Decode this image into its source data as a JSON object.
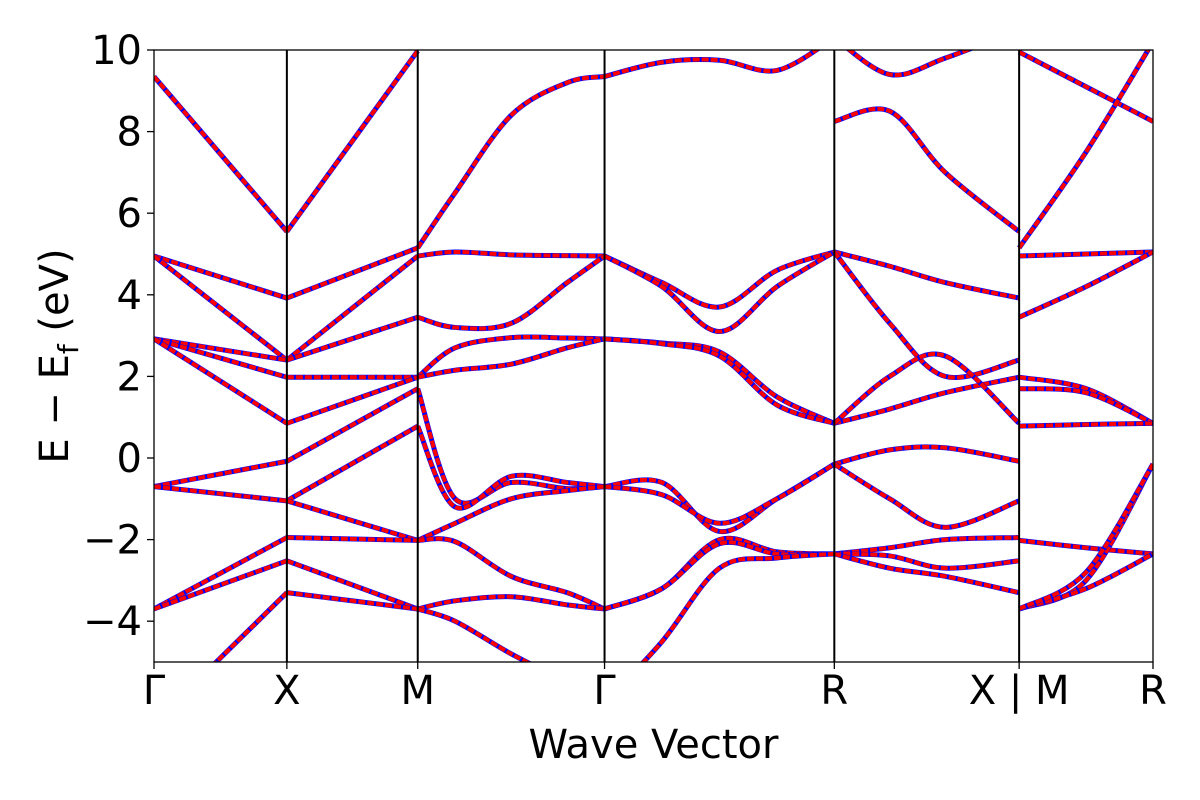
{
  "chart_data": {
    "type": "line",
    "xlabel": "Wave Vector",
    "ylabel": "E − E_f (eV)",
    "ylabel_main": "E − E",
    "ylabel_sub": "f",
    "ylabel_unit": " (eV)",
    "ylim": [
      -5,
      10
    ],
    "yticks": [
      -4,
      -2,
      0,
      2,
      4,
      6,
      8,
      10
    ],
    "ytick_labels": [
      "−4",
      "−2",
      "0",
      "2",
      "4",
      "6",
      "8",
      "10"
    ],
    "xlim": [
      0,
      1
    ],
    "kpath_ticks": [
      0,
      0.133,
      0.264,
      0.451,
      0.681,
      0.866,
      1.0
    ],
    "kpath_labels": [
      "Γ",
      "X",
      "M",
      "Γ",
      "R",
      "X | M",
      "R"
    ],
    "grid": false,
    "legend": "none",
    "colors": {
      "reference": "#0000ff",
      "overlay": "#ff0000"
    },
    "segments": [
      {
        "x": [
          0,
          1
        ],
        "bands": [
          [
            9.35,
            5.55
          ],
          [
            4.95,
            3.92
          ],
          [
            4.95,
            2.4
          ],
          [
            2.92,
            2.4
          ],
          [
            2.92,
            1.98
          ],
          [
            2.92,
            0.85
          ],
          [
            -0.7,
            -0.08
          ],
          [
            -0.7,
            -1.05
          ],
          [
            -3.7,
            -1.95
          ],
          [
            -3.7,
            -2.52
          ],
          [
            -6.5,
            -3.3
          ]
        ]
      },
      {
        "x": [
          0,
          1
        ],
        "bands": [
          [
            5.55,
            9.98
          ],
          [
            3.92,
            5.15
          ],
          [
            2.4,
            4.95
          ],
          [
            2.4,
            3.45
          ],
          [
            1.98,
            1.98
          ],
          [
            0.85,
            1.98
          ],
          [
            -0.08,
            1.7
          ],
          [
            -1.05,
            0.78
          ],
          [
            -1.05,
            -2.02
          ],
          [
            -1.95,
            -2.02
          ],
          [
            -2.52,
            -3.7
          ],
          [
            -3.3,
            -3.7
          ]
        ]
      },
      {
        "x": [
          0,
          0.2,
          0.5,
          0.8,
          1
        ],
        "bands": [
          [
            5.15,
            6.5,
            8.4,
            9.2,
            9.35
          ],
          [
            4.95,
            5.05,
            4.98,
            4.96,
            4.95
          ],
          [
            3.45,
            3.2,
            3.3,
            4.3,
            4.95
          ],
          [
            1.98,
            2.7,
            2.95,
            2.94,
            2.92
          ],
          [
            1.98,
            2.15,
            2.3,
            2.7,
            2.92
          ],
          [
            1.7,
            -1.0,
            -0.6,
            -0.75,
            -0.7
          ],
          [
            0.78,
            -1.2,
            -0.45,
            -0.6,
            -0.7
          ],
          [
            -2.02,
            -1.6,
            -1.0,
            -0.8,
            -0.7
          ],
          [
            -2.02,
            -2.05,
            -2.9,
            -3.3,
            -3.7
          ],
          [
            -3.7,
            -3.5,
            -3.4,
            -3.6,
            -3.7
          ],
          [
            -3.7,
            -4.0,
            -4.8,
            -5.5,
            -6.0
          ]
        ]
      },
      {
        "x": [
          0,
          0.25,
          0.5,
          0.75,
          1
        ],
        "bands": [
          [
            9.35,
            9.7,
            9.75,
            9.5,
            10.3
          ],
          [
            4.95,
            4.3,
            3.7,
            4.6,
            5.05
          ],
          [
            4.95,
            4.2,
            3.1,
            4.2,
            5.05
          ],
          [
            2.92,
            2.82,
            2.6,
            1.5,
            0.85
          ],
          [
            2.92,
            2.8,
            2.5,
            1.3,
            0.85
          ],
          [
            -0.7,
            -0.6,
            -1.8,
            -1.0,
            -0.15
          ],
          [
            -0.7,
            -0.9,
            -1.6,
            -1.0,
            -0.15
          ],
          [
            -3.7,
            -3.2,
            -2.0,
            -2.3,
            -2.35
          ],
          [
            -3.7,
            -3.2,
            -2.1,
            -2.35,
            -2.35
          ],
          [
            -6.0,
            -4.5,
            -2.7,
            -2.45,
            -2.35
          ]
        ]
      },
      {
        "x": [
          0,
          0.3,
          0.6,
          1
        ],
        "bands": [
          [
            10.3,
            9.4,
            9.8,
            10.5
          ],
          [
            8.25,
            8.5,
            7.0,
            5.55
          ],
          [
            5.05,
            4.7,
            4.3,
            3.92
          ],
          [
            5.05,
            3.3,
            2.0,
            2.4
          ],
          [
            0.85,
            1.2,
            1.6,
            1.98
          ],
          [
            0.85,
            2.0,
            2.5,
            0.85
          ],
          [
            -0.15,
            0.2,
            0.25,
            -0.08
          ],
          [
            -0.15,
            -1.0,
            -1.7,
            -1.05
          ],
          [
            -2.35,
            -2.2,
            -2.0,
            -1.95
          ],
          [
            -2.35,
            -2.4,
            -2.7,
            -2.52
          ],
          [
            -2.35,
            -2.7,
            -2.9,
            -3.3
          ]
        ]
      },
      {
        "x": [
          0,
          0.5,
          1
        ],
        "bands": [
          [
            9.95,
            9.1,
            8.25
          ],
          [
            5.15,
            7.5,
            10.2
          ],
          [
            4.95,
            5.0,
            5.05
          ],
          [
            3.45,
            4.2,
            5.05
          ],
          [
            1.98,
            1.7,
            0.85
          ],
          [
            1.7,
            1.6,
            0.85
          ],
          [
            0.78,
            0.82,
            0.85
          ],
          [
            -2.02,
            -2.2,
            -2.35
          ],
          [
            -3.7,
            -3.0,
            -0.15
          ],
          [
            -3.7,
            -3.2,
            -2.35
          ],
          [
            -3.7,
            -2.8,
            -0.15
          ]
        ]
      }
    ]
  }
}
